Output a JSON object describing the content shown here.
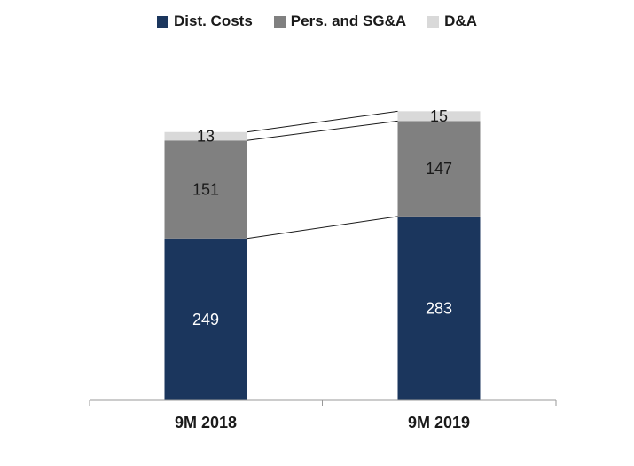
{
  "chart_data": {
    "type": "bar",
    "stacked": true,
    "categories": [
      "9M 2018",
      "9M 2019"
    ],
    "series": [
      {
        "name": "Dist. Costs",
        "values": [
          249,
          283
        ],
        "color": "#1b365d",
        "label_color": "#ffffff"
      },
      {
        "name": "Pers. and SG&A",
        "values": [
          151,
          147
        ],
        "color": "#808080",
        "label_color": "#1a1a1a"
      },
      {
        "name": "D&A",
        "values": [
          13,
          15
        ],
        "color": "#d9d9d9",
        "label_color": "#1a1a1a"
      }
    ],
    "title": "",
    "xlabel": "",
    "ylabel": "",
    "ylim": [
      0,
      450
    ],
    "legend_position": "top",
    "connector_lines": true,
    "grid": false
  }
}
